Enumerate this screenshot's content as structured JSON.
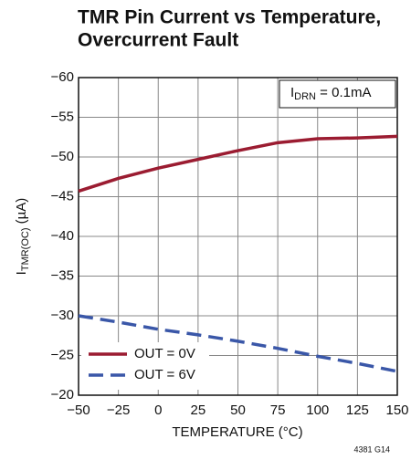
{
  "chart_data": {
    "type": "line",
    "title": [
      "TMR Pin Current vs Temperature,",
      "Overcurrent Fault"
    ],
    "xlabel": "TEMPERATURE (°C)",
    "ylabel": {
      "main": "I",
      "sub": "TMR(OC)",
      "rest": " (µA)"
    },
    "annotation": {
      "main": "I",
      "sub": "DRN",
      "rest": " = 0.1mA"
    },
    "footnote": "4381 G14",
    "x": [
      -50,
      -25,
      0,
      25,
      50,
      75,
      100,
      125,
      150
    ],
    "series": [
      {
        "name": "OUT = 0V",
        "color": "#9b1c31",
        "dash": false,
        "values": [
          -45.7,
          -47.3,
          -48.6,
          -49.7,
          -50.8,
          -51.8,
          -52.3,
          -52.4,
          -52.6
        ]
      },
      {
        "name": "OUT = 6V",
        "color": "#3a57a8",
        "dash": true,
        "values": [
          -30,
          -29.2,
          -28.3,
          -27.6,
          -26.8,
          -25.9,
          -24.9,
          -24,
          -23
        ]
      }
    ],
    "xlim": [
      -50,
      150
    ],
    "xticks": [
      {
        "value": -50,
        "label": "−50"
      },
      {
        "value": -25,
        "label": "−25"
      },
      0,
      25,
      50,
      75,
      100,
      125,
      150
    ],
    "ylim": [
      -20,
      -60
    ],
    "yticks": [
      {
        "value": -20,
        "label": "−20"
      },
      {
        "value": -25,
        "label": "−25"
      },
      {
        "value": -30,
        "label": "−30"
      },
      {
        "value": -35,
        "label": "−35"
      },
      {
        "value": -40,
        "label": "−40"
      },
      {
        "value": -45,
        "label": "−45"
      },
      {
        "value": -50,
        "label": "−50"
      },
      {
        "value": -55,
        "label": "−55"
      },
      {
        "value": -60,
        "label": "−60"
      }
    ],
    "grid": true,
    "legend": "lower left"
  }
}
